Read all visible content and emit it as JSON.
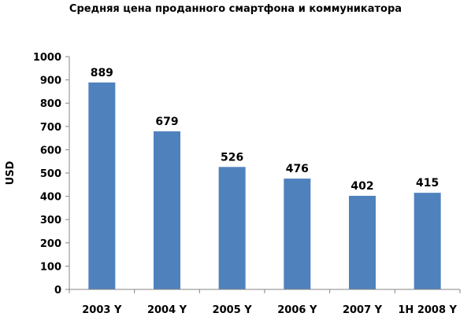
{
  "chart_data": {
    "type": "bar",
    "title": "Средняя цена проданного смартфона и коммуникатора",
    "xlabel": "",
    "ylabel": "USD",
    "categories": [
      "2003 Y",
      "2004 Y",
      "2005 Y",
      "2006 Y",
      "2007 Y",
      "1H 2008 Y"
    ],
    "values": [
      889,
      679,
      526,
      476,
      402,
      415
    ],
    "data_labels": [
      "889",
      "679",
      "526",
      "476",
      "402",
      "415"
    ],
    "ylim": [
      0,
      1000
    ],
    "yticks": [
      0,
      100,
      200,
      300,
      400,
      500,
      600,
      700,
      800,
      900,
      1000
    ],
    "ytick_labels": [
      "0",
      "100",
      "200",
      "300",
      "400",
      "500",
      "600",
      "700",
      "800",
      "900",
      "1000"
    ],
    "grid": false,
    "legend": "none",
    "bar_color": "#4F81BD"
  }
}
